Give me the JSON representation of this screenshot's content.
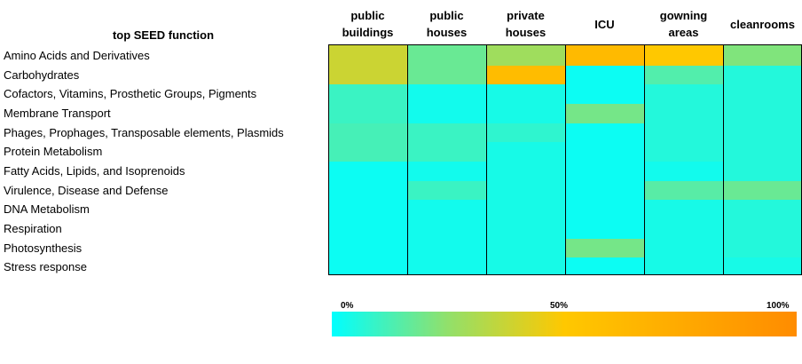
{
  "chart_data": {
    "type": "heatmap",
    "title": "",
    "row_header": "top SEED function",
    "columns": [
      "public\nbuildings",
      "public\nhouses",
      "private\nhouses",
      "ICU",
      "gowning\nareas",
      "cleanrooms"
    ],
    "rows": [
      "Amino Acids and Derivatives",
      "Carbohydrates",
      "Cofactors, Vitamins, Prosthetic Groups, Pigments",
      "Membrane Transport",
      "Phages, Prophages, Transposable elements, Plasmids",
      "Protein Metabolism",
      "Fatty Acids, Lipids, and Isoprenoids",
      "Virulence, Disease and Defense",
      "DNA Metabolism",
      "Respiration",
      "Photosynthesis",
      "Stress response"
    ],
    "column_segments": [
      [
        [
          0,
          2,
          38
        ],
        [
          2,
          4,
          10
        ],
        [
          4,
          6,
          12
        ],
        [
          6,
          12,
          2
        ]
      ],
      [
        [
          0,
          2,
          18
        ],
        [
          2,
          4,
          3
        ],
        [
          4,
          6,
          10
        ],
        [
          6,
          7,
          3
        ],
        [
          7,
          8,
          10
        ],
        [
          8,
          12,
          3
        ]
      ],
      [
        [
          0,
          1,
          28
        ],
        [
          1,
          2,
          60
        ],
        [
          2,
          4,
          4
        ],
        [
          4,
          5,
          8
        ],
        [
          5,
          12,
          4
        ]
      ],
      [
        [
          0,
          1,
          62
        ],
        [
          1,
          3,
          2
        ],
        [
          3,
          4,
          20
        ],
        [
          4,
          10,
          2
        ],
        [
          10,
          11,
          20
        ],
        [
          11,
          12,
          2
        ]
      ],
      [
        [
          0,
          1,
          50
        ],
        [
          1,
          2,
          14
        ],
        [
          2,
          6,
          6
        ],
        [
          6,
          7,
          3
        ],
        [
          7,
          8,
          15
        ],
        [
          8,
          12,
          4
        ]
      ],
      [
        [
          0,
          1,
          22
        ],
        [
          1,
          7,
          6
        ],
        [
          7,
          8,
          18
        ],
        [
          8,
          11,
          6
        ],
        [
          11,
          12,
          4
        ]
      ]
    ],
    "color_scale": {
      "min_label": "0%",
      "mid_label": "50%",
      "max_label": "100%",
      "stops": [
        {
          "value": 0,
          "color": "#00ffff"
        },
        {
          "value": 25,
          "color": "#92e06a"
        },
        {
          "value": 50,
          "color": "#ffc800"
        },
        {
          "value": 100,
          "color": "#ff8c00"
        }
      ]
    }
  }
}
